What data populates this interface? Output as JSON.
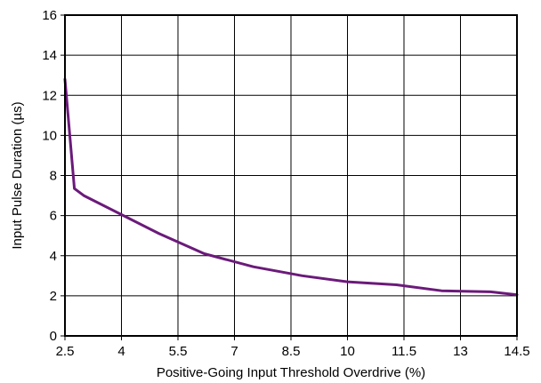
{
  "chart_data": {
    "type": "line",
    "title": "",
    "xlabel": "Positive-Going Input Threshold Overdrive (%)",
    "ylabel": "Input Pulse Duration (µs)",
    "xlim": [
      2.5,
      14.5
    ],
    "ylim": [
      0,
      16
    ],
    "xticks": [
      2.5,
      4,
      5.5,
      7,
      8.5,
      10,
      11.5,
      13,
      14.5
    ],
    "xtick_labels": [
      "2.5",
      "4",
      "5.5",
      "7",
      "8.5",
      "10",
      "11.5",
      "13",
      "14.5"
    ],
    "yticks": [
      0,
      2,
      4,
      6,
      8,
      10,
      12,
      14,
      16
    ],
    "ytick_labels": [
      "0",
      "2",
      "4",
      "6",
      "8",
      "10",
      "12",
      "14",
      "16"
    ],
    "grid": true,
    "legend": "none",
    "series": [
      {
        "color": "#6b1a7a",
        "x": [
          2.5,
          2.75,
          3.0,
          4.0,
          5.0,
          6.2,
          7.5,
          8.8,
          10.0,
          11.3,
          12.5,
          13.8,
          14.5
        ],
        "y": [
          12.8,
          7.35,
          7.0,
          6.05,
          5.1,
          4.1,
          3.45,
          3.0,
          2.7,
          2.55,
          2.25,
          2.2,
          2.05
        ]
      }
    ]
  }
}
